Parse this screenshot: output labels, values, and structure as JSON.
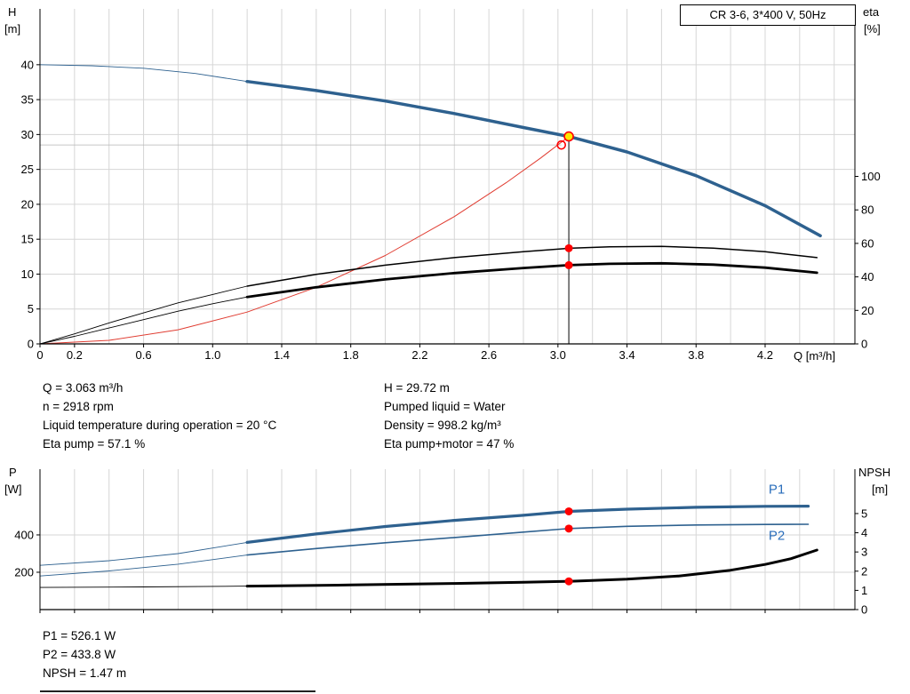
{
  "header": {
    "title_box": "CR 3-6, 3*400 V, 50Hz"
  },
  "axes": {
    "top_left_1": "H",
    "top_left_2": "[m]",
    "top_right_1": "eta",
    "top_right_2": "[%]",
    "x_label": "Q [m³/h]",
    "bottom_left_1": "P",
    "bottom_left_2": "[W]",
    "bottom_right_1": "NPSH",
    "bottom_right_2": "[m]"
  },
  "info": {
    "top_left": [
      "Q = 3.063 m³/h",
      "n = 2918 rpm",
      "Liquid temperature during operation = 20 °C",
      "Eta pump = 57.1 %"
    ],
    "top_right": [
      "H = 29.72 m",
      "Pumped liquid = Water",
      "Density = 998.2 kg/m³",
      "Eta pump+motor = 47 %"
    ],
    "bottom": [
      "P1 = 526.1 W",
      "P2 = 433.8 W",
      "NPSH = 1.47 m"
    ]
  },
  "colors": {
    "grid": "#d6d6d6",
    "axis": "#000000",
    "blue": "#2e618f",
    "black": "#000000",
    "red": "#e03c31",
    "dot_red": "#ff0000",
    "dot_yellow": "#ffe600",
    "label_blue": "#2a6ebb"
  },
  "chart_data": [
    {
      "id": "qh",
      "type": "line",
      "title": "CR 3-6, 3*400 V, 50Hz",
      "x_axis": {
        "min": 0,
        "max": 4.72,
        "grid_step": 0.2,
        "show_tick_labels": true,
        "ticks": [
          "0",
          "0.2",
          "0.6",
          "1.0",
          "1.4",
          "1.8",
          "2.2",
          "2.6",
          "3.0",
          "3.4",
          "3.8",
          "4.2"
        ]
      },
      "left_axis": {
        "min": 0,
        "max": 48,
        "ticks": [
          "0",
          "5",
          "10",
          "15",
          "20",
          "25",
          "30",
          "35",
          "40"
        ]
      },
      "right_axis": {
        "min": 0,
        "max": 200,
        "ticks": [
          "0",
          "20",
          "40",
          "60",
          "80",
          "100"
        ]
      },
      "series": [
        {
          "name": "head-curve-extension",
          "axis": "left",
          "color": "#2e618f",
          "width": 0.9,
          "points": [
            [
              0,
              40.0
            ],
            [
              0.3,
              39.85
            ],
            [
              0.6,
              39.5
            ],
            [
              0.9,
              38.75
            ],
            [
              1.2,
              37.6
            ]
          ]
        },
        {
          "name": "head-curve",
          "axis": "left",
          "color": "#2e618f",
          "width": 3.5,
          "points": [
            [
              1.2,
              37.6
            ],
            [
              1.6,
              36.3
            ],
            [
              2.0,
              34.8
            ],
            [
              2.4,
              33.0
            ],
            [
              2.8,
              31.0
            ],
            [
              3.063,
              29.72
            ],
            [
              3.4,
              27.5
            ],
            [
              3.8,
              24.1
            ],
            [
              4.2,
              19.8
            ],
            [
              4.52,
              15.5
            ]
          ]
        },
        {
          "name": "system-curve",
          "axis": "left",
          "color": "#e03c31",
          "width": 1,
          "points": [
            [
              0,
              0
            ],
            [
              0.4,
              0.51
            ],
            [
              0.8,
              2.03
            ],
            [
              1.2,
              4.56
            ],
            [
              1.6,
              8.11
            ],
            [
              2.0,
              12.67
            ],
            [
              2.4,
              18.24
            ],
            [
              2.7,
              23.09
            ],
            [
              2.9,
              26.64
            ],
            [
              3.063,
              29.72
            ]
          ]
        },
        {
          "name": "eta-pump-curve-extension",
          "axis": "right",
          "color": "#000000",
          "width": 0.9,
          "points": [
            [
              0,
              0
            ],
            [
              0.2,
              6
            ],
            [
              0.4,
              12.5
            ],
            [
              0.6,
              18.5
            ],
            [
              0.8,
              24.5
            ],
            [
              1.0,
              29.5
            ],
            [
              1.2,
              34.5
            ]
          ]
        },
        {
          "name": "eta-pump-curve",
          "axis": "right",
          "color": "#000000",
          "width": 1.5,
          "points": [
            [
              1.2,
              34.5
            ],
            [
              1.6,
              41.5
            ],
            [
              2.0,
              47
            ],
            [
              2.4,
              51.5
            ],
            [
              2.8,
              55
            ],
            [
              3.063,
              57.1
            ],
            [
              3.3,
              58
            ],
            [
              3.6,
              58.2
            ],
            [
              3.9,
              57.2
            ],
            [
              4.2,
              55
            ],
            [
              4.5,
              51.5
            ]
          ]
        },
        {
          "name": "eta-pump-motor-curve-extension",
          "axis": "right",
          "color": "#000000",
          "width": 0.9,
          "points": [
            [
              0,
              0
            ],
            [
              0.2,
              4.5
            ],
            [
              0.4,
              9.5
            ],
            [
              0.6,
              14.5
            ],
            [
              0.8,
              19.5
            ],
            [
              1.0,
              24
            ],
            [
              1.2,
              28
            ]
          ]
        },
        {
          "name": "eta-pump-motor-curve",
          "axis": "right",
          "color": "#000000",
          "width": 2.8,
          "points": [
            [
              1.2,
              28
            ],
            [
              1.6,
              33.8
            ],
            [
              2.0,
              38.5
            ],
            [
              2.4,
              42.3
            ],
            [
              2.8,
              45.3
            ],
            [
              3.063,
              47
            ],
            [
              3.3,
              47.8
            ],
            [
              3.6,
              48.1
            ],
            [
              3.9,
              47.3
            ],
            [
              4.2,
              45.5
            ],
            [
              4.5,
              42.5
            ]
          ]
        }
      ],
      "ref_lines": [
        {
          "name": "duty-hline",
          "type": "h",
          "axis": "left",
          "y": 28.5,
          "x1": 0,
          "x2": 3.02,
          "color": "#b5b5b5",
          "width": 0.8
        },
        {
          "name": "duty-vline",
          "type": "v",
          "axis": "left",
          "x": 3.063,
          "y1": 0,
          "y2": 29.72,
          "color": "#000000",
          "width": 1
        }
      ],
      "markers": [
        {
          "name": "duty-dot-eta-pump",
          "axis": "right",
          "x": 3.063,
          "y": 57.1,
          "r": 4.5,
          "fill": "#ff0000"
        },
        {
          "name": "duty-dot-eta-pump-motor",
          "axis": "right",
          "x": 3.063,
          "y": 47,
          "r": 4.5,
          "fill": "#ff0000"
        },
        {
          "name": "requested-duty-circle",
          "axis": "left",
          "x": 3.02,
          "y": 28.5,
          "r": 4.5,
          "fill": "none",
          "stroke": "#ff0000"
        },
        {
          "name": "duty-point",
          "axis": "left",
          "x": 3.063,
          "y": 29.72,
          "r": 5,
          "fill": "#ffe600",
          "stroke": "#ff0000"
        }
      ],
      "labels": []
    },
    {
      "id": "power",
      "type": "line",
      "x_axis": {
        "min": 0,
        "max": 4.72,
        "grid_step": 0.2,
        "show_tick_labels": false,
        "ticks": [
          "0",
          "0.2",
          "0.6",
          "1.0",
          "1.4",
          "1.8",
          "2.2",
          "2.6",
          "3.0",
          "3.4",
          "3.8",
          "4.2"
        ]
      },
      "left_axis": {
        "min": 0,
        "max": 752,
        "ticks": [
          "200",
          "400"
        ]
      },
      "right_axis": {
        "min": 0,
        "max": 7.31,
        "ticks": [
          "0",
          "1",
          "2",
          "3",
          "4",
          "5"
        ]
      },
      "series": [
        {
          "name": "p1-curve-extension",
          "axis": "left",
          "color": "#2e618f",
          "width": 0.9,
          "points": [
            [
              0,
              237
            ],
            [
              0.4,
              262
            ],
            [
              0.8,
              300
            ],
            [
              1.2,
              360
            ]
          ]
        },
        {
          "name": "p1-curve",
          "axis": "left",
          "color": "#2e618f",
          "width": 3.2,
          "points": [
            [
              1.2,
              360
            ],
            [
              1.6,
              405
            ],
            [
              2.0,
              445
            ],
            [
              2.4,
              478
            ],
            [
              2.8,
              505
            ],
            [
              3.063,
              526
            ],
            [
              3.4,
              538
            ],
            [
              3.8,
              548
            ],
            [
              4.2,
              553
            ],
            [
              4.45,
              554
            ]
          ]
        },
        {
          "name": "p2-curve-extension",
          "axis": "left",
          "color": "#2e618f",
          "width": 0.9,
          "points": [
            [
              0,
              180
            ],
            [
              0.4,
              207
            ],
            [
              0.8,
              243
            ],
            [
              1.2,
              292
            ]
          ]
        },
        {
          "name": "p2-curve",
          "axis": "left",
          "color": "#2e618f",
          "width": 1.6,
          "points": [
            [
              1.2,
              292
            ],
            [
              1.6,
              327
            ],
            [
              2.0,
              358
            ],
            [
              2.4,
              386
            ],
            [
              2.8,
              415
            ],
            [
              3.063,
              434
            ],
            [
              3.4,
              446
            ],
            [
              3.8,
              453
            ],
            [
              4.2,
              456
            ],
            [
              4.45,
              457
            ]
          ]
        },
        {
          "name": "npsh-curve-extension",
          "axis": "right",
          "color": "#000000",
          "width": 0.9,
          "points": [
            [
              0,
              1.15
            ],
            [
              0.6,
              1.18
            ],
            [
              1.2,
              1.22
            ]
          ]
        },
        {
          "name": "npsh-curve",
          "axis": "right",
          "color": "#000000",
          "width": 3,
          "points": [
            [
              1.2,
              1.22
            ],
            [
              1.8,
              1.28
            ],
            [
              2.4,
              1.36
            ],
            [
              2.8,
              1.42
            ],
            [
              3.063,
              1.47
            ],
            [
              3.4,
              1.58
            ],
            [
              3.7,
              1.75
            ],
            [
              4.0,
              2.05
            ],
            [
              4.2,
              2.35
            ],
            [
              4.35,
              2.65
            ],
            [
              4.5,
              3.1
            ]
          ]
        }
      ],
      "ref_lines": [],
      "markers": [
        {
          "name": "duty-dot-p1",
          "axis": "left",
          "x": 3.063,
          "y": 526,
          "r": 4.5,
          "fill": "#ff0000"
        },
        {
          "name": "duty-dot-p2",
          "axis": "left",
          "x": 3.063,
          "y": 434,
          "r": 4.5,
          "fill": "#ff0000"
        },
        {
          "name": "duty-dot-npsh",
          "axis": "right",
          "x": 3.063,
          "y": 1.47,
          "r": 4.5,
          "fill": "#ff0000"
        }
      ],
      "labels": [
        {
          "name": "p1-label",
          "text": "P1",
          "axis": "left",
          "x": 4.22,
          "y": 645,
          "color": "#2a6ebb"
        },
        {
          "name": "p2-label",
          "text": "P2",
          "axis": "left",
          "x": 4.22,
          "y": 398,
          "color": "#2a6ebb"
        }
      ]
    }
  ]
}
